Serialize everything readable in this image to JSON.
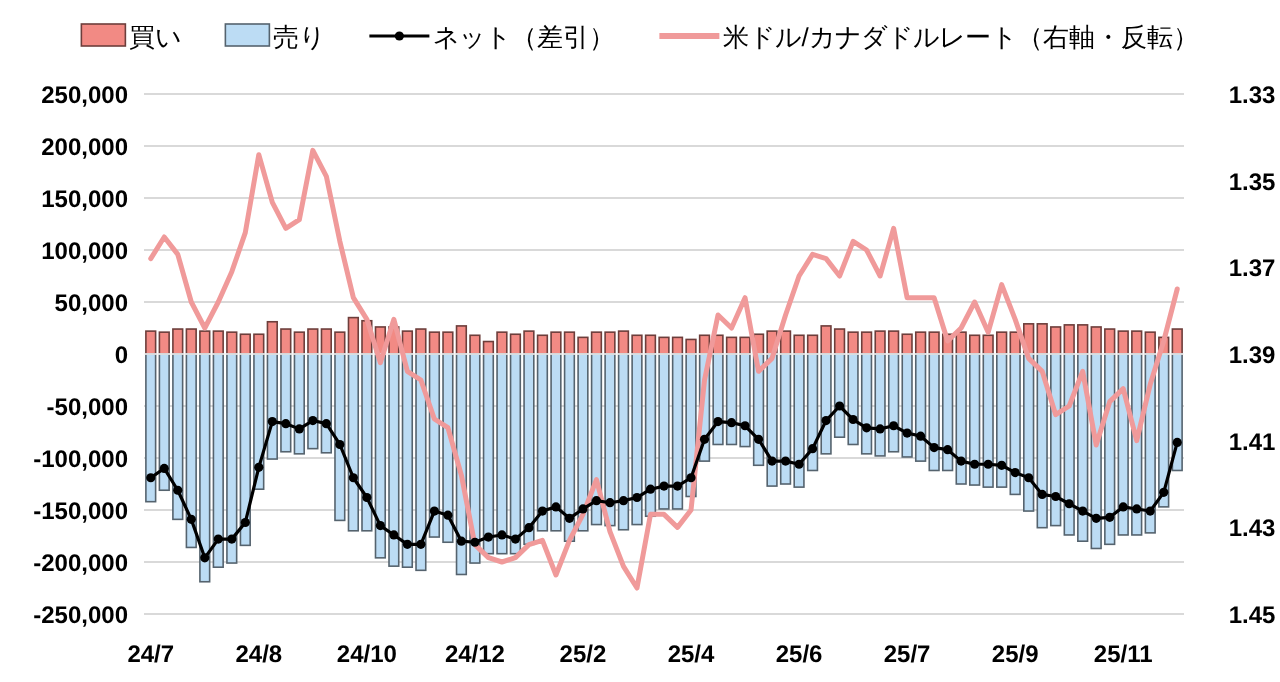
{
  "chart_data": {
    "type": "bar",
    "stacked": true,
    "grid": "y",
    "legend": "top",
    "categories": [
      "24/7",
      null,
      null,
      null,
      null,
      null,
      null,
      null,
      "24/8",
      null,
      null,
      null,
      null,
      null,
      null,
      null,
      "24/10",
      null,
      null,
      null,
      null,
      null,
      null,
      null,
      "24/12",
      null,
      null,
      null,
      null,
      null,
      null,
      null,
      "25/2",
      null,
      null,
      null,
      null,
      null,
      null,
      null,
      "25/4",
      null,
      null,
      null,
      null,
      null,
      null,
      null,
      "25/6",
      null,
      null,
      null,
      null,
      null,
      null,
      null,
      "25/7",
      null,
      null,
      null,
      null,
      null,
      null,
      null,
      "25/9",
      null,
      null,
      null,
      null,
      null,
      null,
      null,
      "25/11",
      null,
      null,
      null,
      null
    ],
    "ylim": [
      -250000,
      250000
    ],
    "yticks": [
      {
        "value": 250000,
        "label": "250,000"
      },
      {
        "value": 200000,
        "label": "200,000"
      },
      {
        "value": 150000,
        "label": "150,000"
      },
      {
        "value": 100000,
        "label": "100,000"
      },
      {
        "value": 50000,
        "label": "50,000"
      },
      0,
      {
        "value": -50000,
        "label": "-50,000"
      },
      {
        "value": -100000,
        "label": "-100,000"
      },
      {
        "value": -150000,
        "label": "-150,000"
      },
      {
        "value": -200000,
        "label": "-200,000"
      },
      {
        "value": -250000,
        "label": "-250,000"
      }
    ],
    "y2lim": [
      1.45,
      1.33
    ],
    "y2ticks": [
      1.33,
      1.35,
      1.37,
      1.39,
      1.41,
      1.43,
      1.45
    ],
    "series": [
      {
        "name": "買い",
        "color": "#f28a84",
        "values": [
          22000,
          21000,
          24000,
          24000,
          22000,
          22000,
          21000,
          19000,
          19000,
          31000,
          24000,
          21000,
          24000,
          24000,
          21000,
          35000,
          32000,
          26000,
          26000,
          22000,
          24000,
          21000,
          21000,
          27000,
          18000,
          12000,
          21000,
          19000,
          22000,
          18000,
          21000,
          21000,
          16000,
          21000,
          21000,
          22000,
          18000,
          18000,
          16000,
          16000,
          14000,
          18000,
          18000,
          16000,
          16000,
          19000,
          22000,
          22000,
          18000,
          18000,
          27000,
          24000,
          21000,
          21000,
          22000,
          22000,
          19000,
          21000,
          21000,
          19000,
          21000,
          18000,
          18000,
          21000,
          21000,
          29000,
          29000,
          26000,
          28000,
          28000,
          26000,
          24000,
          22000,
          22000,
          21000,
          16000,
          24000
        ]
      },
      {
        "name": "売り",
        "color": "#bcdcf4",
        "values": [
          -142000,
          -131000,
          -159000,
          -186000,
          -219000,
          -205000,
          -201000,
          -184000,
          -130000,
          -101000,
          -94000,
          -96000,
          -91000,
          -95000,
          -160000,
          -170000,
          -170000,
          -196000,
          -204000,
          -205000,
          -208000,
          -176000,
          -181000,
          -212000,
          -201000,
          -192000,
          -192000,
          -192000,
          -183000,
          -170000,
          -170000,
          -180000,
          -170000,
          -164000,
          -165000,
          -169000,
          -164000,
          -156000,
          -149000,
          -149000,
          -137000,
          -103000,
          -87000,
          -87000,
          -89000,
          -107000,
          -127000,
          -125000,
          -128000,
          -112000,
          -96000,
          -80000,
          -87000,
          -96000,
          -98000,
          -94000,
          -99000,
          -103000,
          -112000,
          -112000,
          -125000,
          -126000,
          -128000,
          -128000,
          -135000,
          -151000,
          -167000,
          -165000,
          -174000,
          -180000,
          -187000,
          -183000,
          -174000,
          -174000,
          -172000,
          -147000,
          -112000
        ]
      },
      {
        "name": "ネット（差引）",
        "type": "line",
        "color": "#000000",
        "marker": "circle",
        "values": [
          -119000,
          -110000,
          -131000,
          -159000,
          -196000,
          -178000,
          -178000,
          -162000,
          -109000,
          -65000,
          -67000,
          -72000,
          -64000,
          -67000,
          -87000,
          -119000,
          -138000,
          -165000,
          -174000,
          -183000,
          -183000,
          -151000,
          -155000,
          -180000,
          -181000,
          -176000,
          -174000,
          -178000,
          -167000,
          -151000,
          -147000,
          -158000,
          -149000,
          -141000,
          -143000,
          -141000,
          -138000,
          -130000,
          -127000,
          -127000,
          -119000,
          -82000,
          -65000,
          -66000,
          -69000,
          -82000,
          -103000,
          -103000,
          -106000,
          -91000,
          -64000,
          -50000,
          -63000,
          -71000,
          -72000,
          -69000,
          -76000,
          -79000,
          -90000,
          -92000,
          -103000,
          -106000,
          -106000,
          -107000,
          -114000,
          -119000,
          -135000,
          -137000,
          -144000,
          -151000,
          -158000,
          -157000,
          -147000,
          -149000,
          -151000,
          -133000,
          -85000
        ]
      },
      {
        "name": "米ドル/カナダドルレート（右軸・反転）",
        "type": "line",
        "axis": "y2",
        "color": "#f09a9a",
        "marker": "none",
        "values": [
          1.368,
          1.363,
          1.367,
          1.378,
          1.384,
          1.378,
          1.371,
          1.362,
          1.344,
          1.355,
          1.361,
          1.359,
          1.343,
          1.349,
          1.364,
          1.377,
          1.382,
          1.392,
          1.382,
          1.394,
          1.396,
          1.405,
          1.407,
          1.418,
          1.434,
          1.437,
          1.438,
          1.437,
          1.434,
          1.433,
          1.441,
          1.433,
          1.427,
          1.419,
          1.431,
          1.439,
          1.444,
          1.427,
          1.427,
          1.43,
          1.426,
          1.396,
          1.381,
          1.384,
          1.377,
          1.394,
          1.391,
          1.381,
          1.372,
          1.367,
          1.368,
          1.372,
          1.364,
          1.366,
          1.372,
          1.361,
          1.377,
          1.377,
          1.377,
          1.387,
          1.384,
          1.378,
          1.385,
          1.374,
          1.382,
          1.391,
          1.394,
          1.404,
          1.402,
          1.394,
          1.411,
          1.401,
          1.398,
          1.41,
          1.397,
          1.387,
          1.375
        ]
      }
    ]
  }
}
